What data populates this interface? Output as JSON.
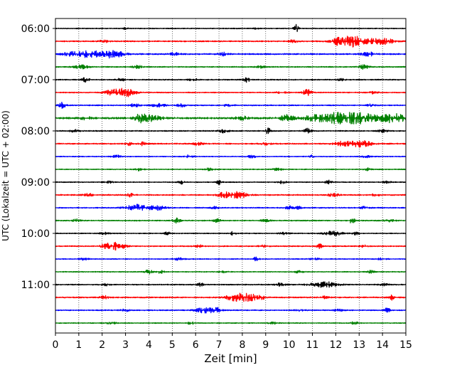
{
  "chart_data": {
    "type": "line",
    "chart_kind": "helicorder-seismogram",
    "title": "",
    "xlabel": "Zeit  [min]",
    "ylabel": "UTC (Lokalzeit = UTC + 02:00)",
    "xlim": [
      0,
      15
    ],
    "x_ticks": [
      "0",
      "1",
      "2",
      "3",
      "4",
      "5",
      "6",
      "7",
      "8",
      "9",
      "10",
      "11",
      "12",
      "13",
      "14",
      "15"
    ],
    "y_tick_labels": [
      "06:00",
      "07:00",
      "08:00",
      "09:00",
      "10:00",
      "11:00"
    ],
    "grid": "vertical dotted lines at each minute",
    "legend": "none",
    "trace_colors": [
      "#000000",
      "#ff0000",
      "#0000ff",
      "#008000"
    ],
    "traces": [
      {
        "start": "06:00",
        "noise": 0.5,
        "events": [
          {
            "t": 10.3,
            "amp": 6,
            "dur": 0.1
          },
          {
            "t": 3.0,
            "amp": 1.5,
            "dur": 0.1
          },
          {
            "t": 8.6,
            "amp": 1.4,
            "dur": 0.1
          }
        ]
      },
      {
        "start": "06:15",
        "noise": 0.7,
        "events": [
          {
            "t": 12.6,
            "amp": 8,
            "dur": 0.6
          },
          {
            "t": 12.3,
            "amp": 4,
            "dur": 0.3
          },
          {
            "t": 14.1,
            "amp": 4,
            "dur": 0.4
          },
          {
            "t": 13.5,
            "amp": 2.5,
            "dur": 0.3
          },
          {
            "t": 10.2,
            "amp": 2,
            "dur": 0.2
          },
          {
            "t": 2.1,
            "amp": 1.5,
            "dur": 0.2
          }
        ]
      },
      {
        "start": "06:30",
        "noise": 0.8,
        "events": [
          {
            "t": 1.4,
            "amp": 5,
            "dur": 0.5
          },
          {
            "t": 2.4,
            "amp": 5,
            "dur": 0.5
          },
          {
            "t": 0.6,
            "amp": 2.5,
            "dur": 0.3
          },
          {
            "t": 13.4,
            "amp": 2.5,
            "dur": 0.3
          },
          {
            "t": 5.1,
            "amp": 2,
            "dur": 0.2
          },
          {
            "t": 7.2,
            "amp": 2,
            "dur": 0.2
          }
        ]
      },
      {
        "start": "06:45",
        "noise": 0.6,
        "events": [
          {
            "t": 13.2,
            "amp": 3.5,
            "dur": 0.2
          },
          {
            "t": 1.1,
            "amp": 2.5,
            "dur": 0.3
          },
          {
            "t": 3.5,
            "amp": 2.5,
            "dur": 0.2
          },
          {
            "t": 8.8,
            "amp": 1.5,
            "dur": 0.2
          }
        ]
      },
      {
        "start": "07:00",
        "noise": 0.6,
        "events": [
          {
            "t": 1.3,
            "amp": 3.5,
            "dur": 0.15
          },
          {
            "t": 8.2,
            "amp": 3.5,
            "dur": 0.15
          },
          {
            "t": 2.8,
            "amp": 1.8,
            "dur": 0.2
          },
          {
            "t": 5.9,
            "amp": 1.5,
            "dur": 0.2
          },
          {
            "t": 12.2,
            "amp": 1.5,
            "dur": 0.2
          }
        ]
      },
      {
        "start": "07:15",
        "noise": 0.6,
        "events": [
          {
            "t": 3.0,
            "amp": 6,
            "dur": 0.4
          },
          {
            "t": 2.4,
            "amp": 3.5,
            "dur": 0.3
          },
          {
            "t": 10.8,
            "amp": 4.5,
            "dur": 0.2
          },
          {
            "t": 9.7,
            "amp": 1.5,
            "dur": 0.2
          },
          {
            "t": 13.6,
            "amp": 1.5,
            "dur": 0.2
          }
        ]
      },
      {
        "start": "07:30",
        "noise": 0.6,
        "events": [
          {
            "t": 0.3,
            "amp": 4,
            "dur": 0.15
          },
          {
            "t": 3.4,
            "amp": 2.5,
            "dur": 0.2
          },
          {
            "t": 4.4,
            "amp": 2.5,
            "dur": 0.3
          },
          {
            "t": 5.4,
            "amp": 2,
            "dur": 0.2
          },
          {
            "t": 7.4,
            "amp": 1.5,
            "dur": 0.2
          },
          {
            "t": 13.5,
            "amp": 1.5,
            "dur": 0.2
          }
        ]
      },
      {
        "start": "07:45",
        "noise": 1.1,
        "events": [
          {
            "t": 12.5,
            "amp": 9,
            "dur": 1.2
          },
          {
            "t": 14.5,
            "amp": 6,
            "dur": 0.5
          },
          {
            "t": 4.0,
            "amp": 4,
            "dur": 0.5
          },
          {
            "t": 3.6,
            "amp": 4,
            "dur": 0.2
          },
          {
            "t": 9.9,
            "amp": 4,
            "dur": 0.3
          },
          {
            "t": 1.3,
            "amp": 2.5,
            "dur": 0.2
          },
          {
            "t": 8.0,
            "amp": 2,
            "dur": 0.3
          },
          {
            "t": 11.0,
            "amp": 2.5,
            "dur": 0.3
          }
        ]
      },
      {
        "start": "08:00",
        "noise": 0.6,
        "events": [
          {
            "t": 9.1,
            "amp": 5,
            "dur": 0.12
          },
          {
            "t": 10.8,
            "amp": 3.5,
            "dur": 0.15
          },
          {
            "t": 7.2,
            "amp": 2.5,
            "dur": 0.2
          },
          {
            "t": 0.8,
            "amp": 2,
            "dur": 0.2
          },
          {
            "t": 14.0,
            "amp": 1.8,
            "dur": 0.2
          }
        ]
      },
      {
        "start": "08:15",
        "noise": 0.7,
        "events": [
          {
            "t": 13.0,
            "amp": 5,
            "dur": 0.5
          },
          {
            "t": 12.2,
            "amp": 3,
            "dur": 0.3
          },
          {
            "t": 3.1,
            "amp": 3.5,
            "dur": 0.12
          },
          {
            "t": 3.7,
            "amp": 2.5,
            "dur": 0.15
          },
          {
            "t": 6.1,
            "amp": 2,
            "dur": 0.2
          },
          {
            "t": 9.0,
            "amp": 1.5,
            "dur": 0.2
          }
        ]
      },
      {
        "start": "08:30",
        "noise": 0.5,
        "events": [
          {
            "t": 8.4,
            "amp": 3,
            "dur": 0.15
          },
          {
            "t": 10.9,
            "amp": 2.5,
            "dur": 0.15
          },
          {
            "t": 2.6,
            "amp": 2,
            "dur": 0.2
          },
          {
            "t": 5.7,
            "amp": 2,
            "dur": 0.2
          },
          {
            "t": 13.3,
            "amp": 1.5,
            "dur": 0.2
          }
        ]
      },
      {
        "start": "08:45",
        "noise": 0.5,
        "events": [
          {
            "t": 3.6,
            "amp": 3,
            "dur": 0.15
          },
          {
            "t": 13.4,
            "amp": 2.5,
            "dur": 0.15
          },
          {
            "t": 6.6,
            "amp": 1.8,
            "dur": 0.2
          },
          {
            "t": 9.5,
            "amp": 1.8,
            "dur": 0.2
          }
        ]
      },
      {
        "start": "09:00",
        "noise": 0.5,
        "events": [
          {
            "t": 7.0,
            "amp": 3.5,
            "dur": 0.12
          },
          {
            "t": 5.4,
            "amp": 2.5,
            "dur": 0.15
          },
          {
            "t": 9.7,
            "amp": 2.5,
            "dur": 0.15
          },
          {
            "t": 11.7,
            "amp": 2.5,
            "dur": 0.15
          },
          {
            "t": 2.3,
            "amp": 1.5,
            "dur": 0.2
          },
          {
            "t": 14.2,
            "amp": 1.5,
            "dur": 0.2
          }
        ]
      },
      {
        "start": "09:15",
        "noise": 0.7,
        "events": [
          {
            "t": 7.8,
            "amp": 5,
            "dur": 0.4
          },
          {
            "t": 7.2,
            "amp": 3,
            "dur": 0.3
          },
          {
            "t": 3.2,
            "amp": 3,
            "dur": 0.12
          },
          {
            "t": 11.9,
            "amp": 2.5,
            "dur": 0.2
          },
          {
            "t": 1.4,
            "amp": 2,
            "dur": 0.2
          },
          {
            "t": 13.7,
            "amp": 1.5,
            "dur": 0.2
          }
        ]
      },
      {
        "start": "09:30",
        "noise": 0.6,
        "events": [
          {
            "t": 3.5,
            "amp": 4.5,
            "dur": 0.5
          },
          {
            "t": 4.4,
            "amp": 3.5,
            "dur": 0.3
          },
          {
            "t": 10.0,
            "amp": 2.5,
            "dur": 0.15
          },
          {
            "t": 10.4,
            "amp": 2.5,
            "dur": 0.15
          },
          {
            "t": 6.8,
            "amp": 1.5,
            "dur": 0.2
          },
          {
            "t": 13.2,
            "amp": 1.5,
            "dur": 0.2
          }
        ]
      },
      {
        "start": "09:45",
        "noise": 0.6,
        "events": [
          {
            "t": 0.9,
            "amp": 3.5,
            "dur": 0.12
          },
          {
            "t": 5.2,
            "amp": 3.5,
            "dur": 0.15
          },
          {
            "t": 6.9,
            "amp": 2.5,
            "dur": 0.15
          },
          {
            "t": 12.7,
            "amp": 4,
            "dur": 0.12
          },
          {
            "t": 9.0,
            "amp": 1.5,
            "dur": 0.2
          },
          {
            "t": 14.3,
            "amp": 1.5,
            "dur": 0.2
          }
        ]
      },
      {
        "start": "10:00",
        "noise": 0.5,
        "events": [
          {
            "t": 11.9,
            "amp": 3,
            "dur": 0.4
          },
          {
            "t": 12.9,
            "amp": 2.5,
            "dur": 0.15
          },
          {
            "t": 4.8,
            "amp": 2.5,
            "dur": 0.12
          },
          {
            "t": 7.6,
            "amp": 2.5,
            "dur": 0.12
          },
          {
            "t": 2.1,
            "amp": 1.5,
            "dur": 0.2
          },
          {
            "t": 9.8,
            "amp": 1.5,
            "dur": 0.2
          }
        ]
      },
      {
        "start": "10:15",
        "noise": 0.6,
        "events": [
          {
            "t": 2.6,
            "amp": 5,
            "dur": 0.4
          },
          {
            "t": 11.3,
            "amp": 3.5,
            "dur": 0.12
          },
          {
            "t": 2.1,
            "amp": 2.5,
            "dur": 0.2
          },
          {
            "t": 6.1,
            "amp": 2,
            "dur": 0.2
          },
          {
            "t": 8.9,
            "amp": 1.5,
            "dur": 0.2
          },
          {
            "t": 13.2,
            "amp": 1.5,
            "dur": 0.2
          }
        ]
      },
      {
        "start": "10:30",
        "noise": 0.5,
        "events": [
          {
            "t": 8.6,
            "amp": 3,
            "dur": 0.12
          },
          {
            "t": 5.3,
            "amp": 2,
            "dur": 0.2
          },
          {
            "t": 1.2,
            "amp": 1.5,
            "dur": 0.2
          },
          {
            "t": 11.1,
            "amp": 1.5,
            "dur": 0.2
          },
          {
            "t": 14.0,
            "amp": 1.5,
            "dur": 0.2
          }
        ]
      },
      {
        "start": "10:45",
        "noise": 0.5,
        "events": [
          {
            "t": 4.0,
            "amp": 3,
            "dur": 0.15
          },
          {
            "t": 4.5,
            "amp": 2.5,
            "dur": 0.15
          },
          {
            "t": 13.5,
            "amp": 2,
            "dur": 0.15
          },
          {
            "t": 7.2,
            "amp": 1.5,
            "dur": 0.2
          },
          {
            "t": 10.4,
            "amp": 1.5,
            "dur": 0.2
          }
        ]
      },
      {
        "start": "11:00",
        "noise": 0.6,
        "events": [
          {
            "t": 11.5,
            "amp": 4,
            "dur": 0.6
          },
          {
            "t": 6.2,
            "amp": 3,
            "dur": 0.12
          },
          {
            "t": 9.6,
            "amp": 2,
            "dur": 0.2
          },
          {
            "t": 2.2,
            "amp": 1.5,
            "dur": 0.2
          },
          {
            "t": 14.1,
            "amp": 1.5,
            "dur": 0.2
          }
        ]
      },
      {
        "start": "11:15",
        "noise": 0.7,
        "events": [
          {
            "t": 8.1,
            "amp": 5,
            "dur": 0.5
          },
          {
            "t": 7.6,
            "amp": 3,
            "dur": 0.3
          },
          {
            "t": 14.4,
            "amp": 3.5,
            "dur": 0.12
          },
          {
            "t": 2.1,
            "amp": 2,
            "dur": 0.2
          },
          {
            "t": 8.7,
            "amp": 2.5,
            "dur": 0.3
          },
          {
            "t": 11.5,
            "amp": 1.5,
            "dur": 0.2
          }
        ]
      },
      {
        "start": "11:30",
        "noise": 0.6,
        "events": [
          {
            "t": 6.4,
            "amp": 3.5,
            "dur": 0.4
          },
          {
            "t": 6.9,
            "amp": 3,
            "dur": 0.2
          },
          {
            "t": 14.2,
            "amp": 3,
            "dur": 0.12
          },
          {
            "t": 3.0,
            "amp": 1.8,
            "dur": 0.2
          },
          {
            "t": 10.5,
            "amp": 1.5,
            "dur": 0.2
          },
          {
            "t": 12.1,
            "amp": 1.5,
            "dur": 0.2
          }
        ]
      },
      {
        "start": "11:45",
        "noise": 0.5,
        "events": [
          {
            "t": 5.8,
            "amp": 3,
            "dur": 0.12
          },
          {
            "t": 12.8,
            "amp": 2,
            "dur": 0.15
          },
          {
            "t": 2.4,
            "amp": 1.5,
            "dur": 0.2
          },
          {
            "t": 9.3,
            "amp": 1.5,
            "dur": 0.2
          }
        ]
      }
    ]
  }
}
